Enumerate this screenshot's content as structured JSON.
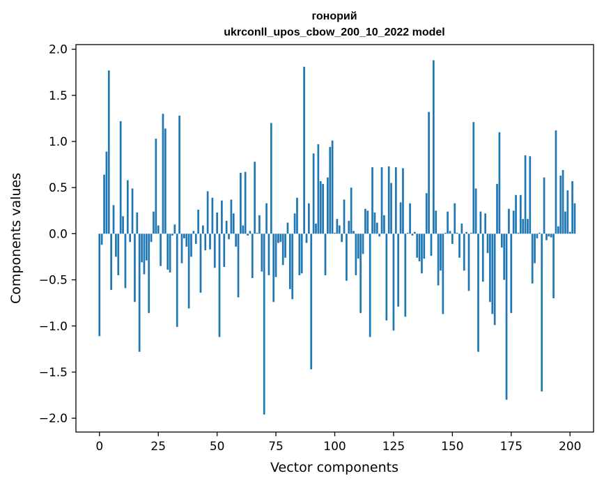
{
  "chart_data": {
    "type": "bar",
    "title": "гонорий",
    "subtitle": "ukrconll_upos_cbow_200_10_2022 model",
    "xlabel": "Vector components",
    "ylabel": "Components values",
    "xlim": [
      -10,
      210
    ],
    "ylim": [
      -2.15,
      2.05
    ],
    "xticks": [
      0,
      25,
      50,
      75,
      100,
      125,
      150,
      175,
      200
    ],
    "xtick_labels": [
      "0",
      "25",
      "50",
      "75",
      "100",
      "125",
      "150",
      "175",
      "200"
    ],
    "yticks": [
      2.0,
      1.5,
      1.0,
      0.5,
      0.0,
      -0.5,
      -1.0,
      -1.5,
      -2.0
    ],
    "ytick_labels": [
      "2.0",
      "1.5",
      "1.0",
      "0.5",
      "0.0",
      "−0.5",
      "−1.0",
      "−1.5",
      "−2.0"
    ],
    "grid": false,
    "bar_color": "#1f77b4",
    "values": [
      -1.11,
      -0.12,
      0.64,
      0.89,
      1.77,
      -0.61,
      0.31,
      -0.25,
      -0.45,
      1.22,
      0.19,
      -0.59,
      0.58,
      -0.09,
      0.49,
      -0.74,
      0.23,
      -1.28,
      -0.31,
      -0.44,
      -0.29,
      -0.86,
      -0.09,
      0.24,
      1.03,
      0.09,
      -0.35,
      1.3,
      1.14,
      -0.39,
      -0.42,
      -0.02,
      0.1,
      -1.01,
      1.28,
      -0.32,
      -0.05,
      -0.14,
      -0.81,
      -0.25,
      0.03,
      -0.11,
      0.26,
      -0.64,
      0.09,
      -0.18,
      0.46,
      -0.17,
      0.39,
      -0.37,
      0.23,
      -1.12,
      0.36,
      -0.36,
      0.14,
      -0.06,
      0.37,
      0.22,
      -0.14,
      -0.69,
      0.66,
      0.09,
      0.67,
      -0.02,
      0.03,
      -0.48,
      0.78,
      0.01,
      0.2,
      -0.41,
      -1.96,
      0.33,
      -0.45,
      1.2,
      -0.74,
      -0.47,
      -0.1,
      -0.09,
      -0.34,
      -0.26,
      0.12,
      -0.6,
      -0.71,
      0.22,
      0.39,
      -0.45,
      -0.43,
      1.81,
      -0.1,
      0.33,
      -1.47,
      0.87,
      0.11,
      0.97,
      0.57,
      0.54,
      -0.45,
      0.61,
      0.94,
      1.01,
      0.01,
      0.16,
      0.09,
      -0.09,
      0.37,
      -0.51,
      0.14,
      0.5,
      0.03,
      -0.45,
      -0.27,
      -0.86,
      -0.22,
      0.27,
      0.25,
      -1.12,
      0.72,
      0.23,
      0.12,
      -0.03,
      0.72,
      0.2,
      -0.94,
      0.73,
      0.55,
      -1.05,
      0.72,
      -0.79,
      0.34,
      0.71,
      -0.9,
      0.01,
      0.33,
      -0.02,
      0.02,
      -0.26,
      -0.3,
      -0.43,
      -0.27,
      0.44,
      1.32,
      -0.24,
      1.88,
      0.25,
      -0.56,
      -0.4,
      -0.87,
      0.01,
      0.24,
      0.03,
      -0.11,
      0.33,
      0.01,
      -0.26,
      0.11,
      -0.4,
      0.02,
      -0.62,
      0.01,
      1.21,
      0.49,
      -1.28,
      0.24,
      -0.52,
      0.22,
      -0.21,
      -0.74,
      -0.87,
      -0.99,
      0.54,
      1.1,
      -0.15,
      -0.5,
      -1.8,
      0.27,
      -0.86,
      0.25,
      0.42,
      0.01,
      0.42,
      0.16,
      0.85,
      0.16,
      0.84,
      -0.54,
      -0.32,
      -0.05,
      0.01,
      -1.71,
      0.61,
      -0.07,
      -0.03,
      -0.04,
      -0.7,
      1.12,
      0.08,
      0.63,
      0.69,
      0.24,
      0.47,
      0.02,
      0.57,
      0.33
    ]
  }
}
